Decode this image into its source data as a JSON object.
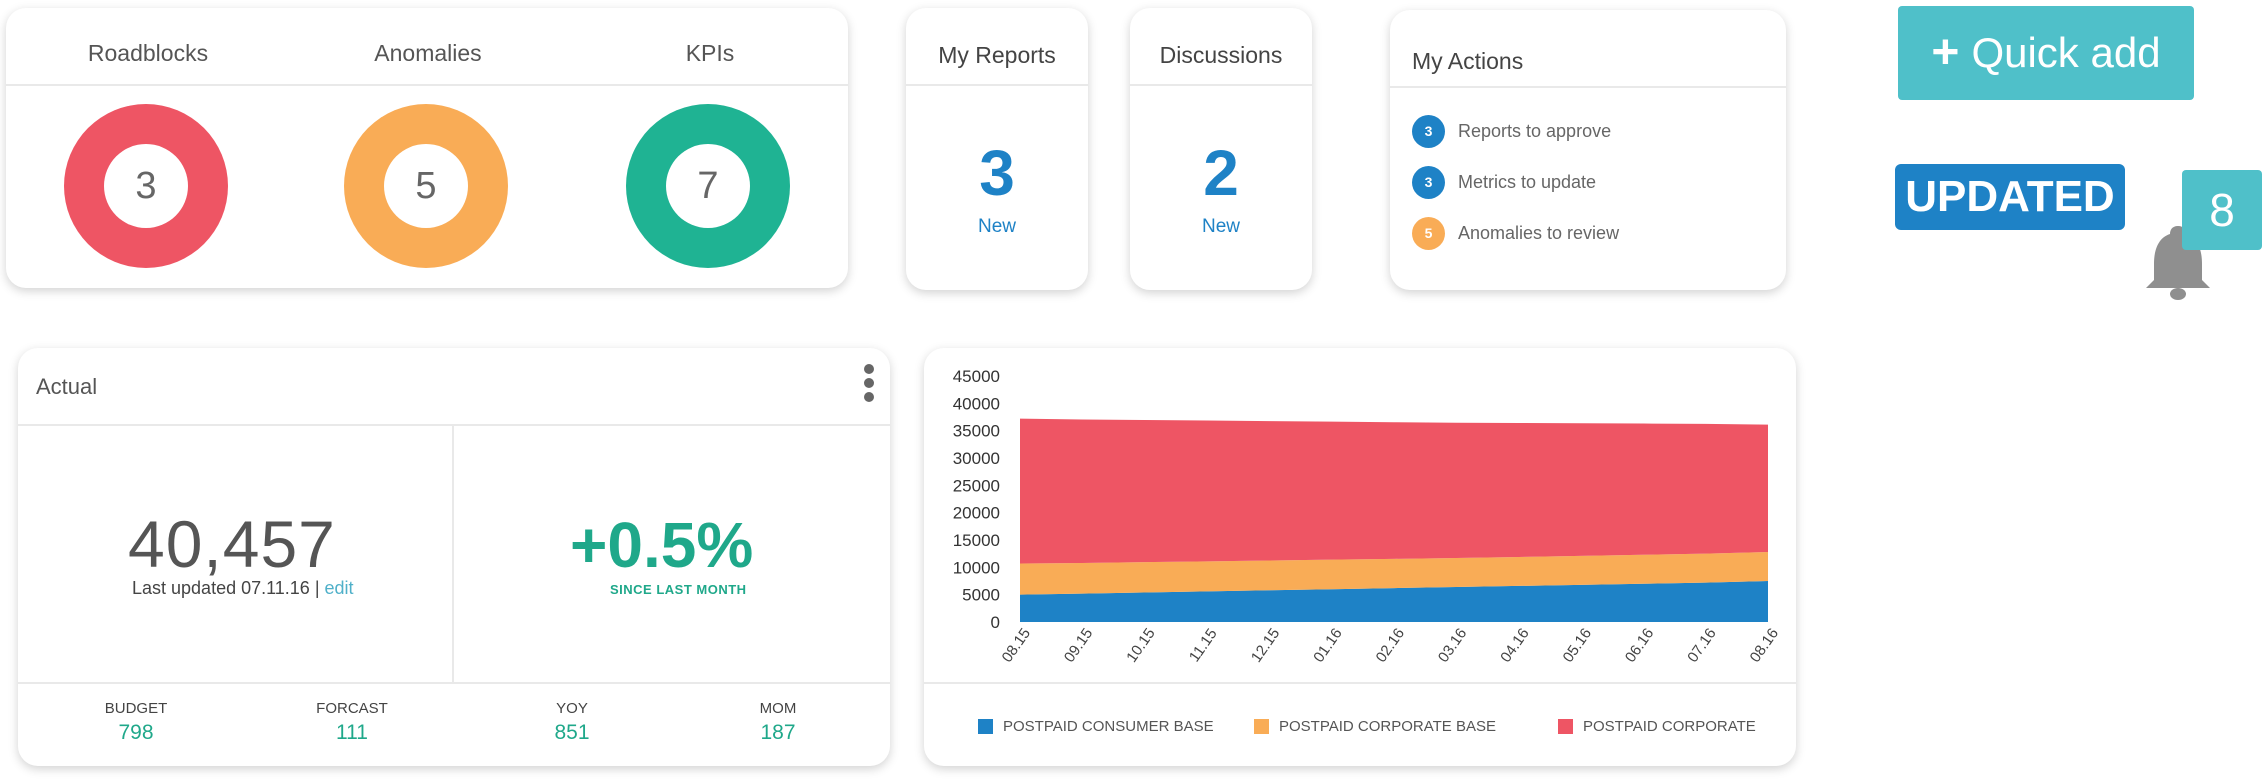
{
  "summary": {
    "columns": [
      {
        "title": "Roadblocks",
        "count": "3",
        "color": "#ee5564"
      },
      {
        "title": "Anomalies",
        "count": "5",
        "color": "#f9ac56"
      },
      {
        "title": "KPIs",
        "count": "7",
        "color": "#1fb393"
      }
    ]
  },
  "reports": {
    "title": "My Reports",
    "count": "3",
    "sub": "New"
  },
  "discussions": {
    "title": "Discussions",
    "count": "2",
    "sub": "New"
  },
  "actions": {
    "title": "My Actions",
    "items": [
      {
        "count": "3",
        "label": "Reports to approve",
        "color": "#1e82c6"
      },
      {
        "count": "3",
        "label": "Metrics to update",
        "color": "#1e82c6"
      },
      {
        "count": "5",
        "label": "Anomalies to review",
        "color": "#f9ac56"
      }
    ]
  },
  "quick_add": {
    "plus": "+",
    "label": "Quick add"
  },
  "updated_label": "UPDATED",
  "notification_count": "8",
  "actual": {
    "title": "Actual",
    "value": "40,457",
    "last_updated_text": "Last updated 07.11.16 |",
    "edit_label": "edit",
    "change": "+0.5%",
    "change_sub": "SINCE LAST MONTH",
    "stats": [
      {
        "label": "BUDGET",
        "value": "798"
      },
      {
        "label": "FORCAST",
        "value": "111"
      },
      {
        "label": "YOY",
        "value": "851"
      },
      {
        "label": "MOM",
        "value": "187"
      }
    ]
  },
  "chart_data": {
    "type": "area",
    "stacked": true,
    "categories": [
      "08.15",
      "09.15",
      "10.15",
      "11.15",
      "12.15",
      "01.16",
      "02.16",
      "03.16",
      "04.16",
      "05.16",
      "06.16",
      "07.16",
      "08.16"
    ],
    "y_ticks": [
      0,
      5000,
      10000,
      15000,
      20000,
      25000,
      30000,
      35000,
      40000,
      45000
    ],
    "ylim": [
      0,
      45000
    ],
    "legend_position": "bottom",
    "series": [
      {
        "name": "POSTPAID CONSUMER BASE",
        "color": "#1e82c6",
        "values": [
          5000,
          5200,
          5400,
          5600,
          5800,
          6000,
          6200,
          6400,
          6600,
          6800,
          7000,
          7200,
          7500
        ]
      },
      {
        "name": "POSTPAID CORPORATE BASE",
        "color": "#f9ac56",
        "values": [
          5700,
          5600,
          5550,
          5500,
          5450,
          5400,
          5350,
          5300,
          5300,
          5300,
          5300,
          5300,
          5300
        ]
      },
      {
        "name": "POSTPAID CORPORATE",
        "color": "#ee5564",
        "values": [
          26500,
          26250,
          26000,
          25750,
          25500,
          25250,
          25000,
          24750,
          24500,
          24250,
          24000,
          23750,
          23300
        ]
      }
    ]
  }
}
